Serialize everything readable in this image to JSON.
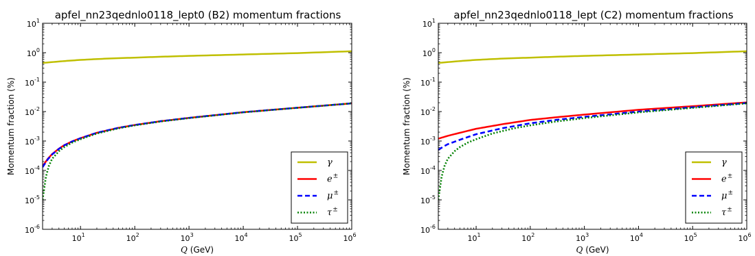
{
  "chart_data": [
    {
      "type": "line",
      "title": "apfel_nn23qednlo0118_lept0 (B2) momentum fractions",
      "xlabel_var": "Q",
      "xlabel_unit": "(GeV)",
      "ylabel": "Momentum fraction (%)",
      "xscale": "log",
      "yscale": "log",
      "xlim": [
        2,
        1000000
      ],
      "ylim": [
        1e-06,
        10
      ],
      "xticks": [
        {
          "base": "10",
          "exp": "1",
          "value": 10
        },
        {
          "base": "10",
          "exp": "2",
          "value": 100
        },
        {
          "base": "10",
          "exp": "3",
          "value": 1000
        },
        {
          "base": "10",
          "exp": "4",
          "value": 10000
        },
        {
          "base": "10",
          "exp": "5",
          "value": 100000
        },
        {
          "base": "10",
          "exp": "6",
          "value": 1000000
        }
      ],
      "yticks": [
        {
          "base": "10",
          "exp": "-6",
          "value": 1e-06
        },
        {
          "base": "10",
          "exp": "-5",
          "value": 1e-05
        },
        {
          "base": "10",
          "exp": "-4",
          "value": 0.0001
        },
        {
          "base": "10",
          "exp": "-3",
          "value": 0.001
        },
        {
          "base": "10",
          "exp": "-2",
          "value": 0.01
        },
        {
          "base": "10",
          "exp": "-1",
          "value": 0.1
        },
        {
          "base": "10",
          "exp": "0",
          "value": 1
        },
        {
          "base": "10",
          "exp": "1",
          "value": 10
        }
      ],
      "legend_position": "lower-right",
      "series": [
        {
          "name": "γ",
          "sup": "",
          "color": "#bfbf00",
          "style": "solid",
          "x": [
            2,
            5,
            10,
            30,
            100,
            300,
            1000,
            10000,
            100000,
            1000000
          ],
          "y": [
            0.45,
            0.52,
            0.57,
            0.63,
            0.68,
            0.73,
            0.78,
            0.87,
            0.97,
            1.12
          ]
        },
        {
          "name": "e",
          "sup": "±",
          "color": "#ff0000",
          "style": "solid",
          "x": [
            2,
            2.5,
            3,
            4,
            5,
            7,
            10,
            20,
            50,
            100,
            300,
            1000,
            10000,
            100000,
            1000000
          ],
          "y": [
            0.00014,
            0.00025,
            0.00036,
            0.00055,
            0.00072,
            0.00097,
            0.00125,
            0.0019,
            0.0028,
            0.0035,
            0.0047,
            0.0061,
            0.0095,
            0.0135,
            0.019
          ]
        },
        {
          "name": "μ",
          "sup": "±",
          "color": "#0000ff",
          "style": "dashed",
          "x": [
            2,
            2.5,
            3,
            4,
            5,
            7,
            10,
            20,
            50,
            100,
            300,
            1000,
            10000,
            100000,
            1000000
          ],
          "y": [
            0.00013,
            0.00024,
            0.00035,
            0.00054,
            0.00071,
            0.00096,
            0.00124,
            0.0019,
            0.0028,
            0.0035,
            0.0047,
            0.0061,
            0.0095,
            0.0135,
            0.019
          ]
        },
        {
          "name": "τ",
          "sup": "±",
          "color": "#008000",
          "style": "dotted",
          "x": [
            2,
            2.3,
            2.6,
            3,
            4,
            5,
            7,
            10,
            20,
            50,
            100,
            300,
            1000,
            10000,
            100000,
            1000000
          ],
          "y": [
            1e-05,
            6e-05,
            0.00014,
            0.00025,
            0.00045,
            0.00062,
            0.00088,
            0.00115,
            0.0018,
            0.0027,
            0.0034,
            0.0046,
            0.006,
            0.0094,
            0.0134,
            0.019
          ]
        }
      ]
    },
    {
      "type": "line",
      "title": "apfel_nn23qednlo0118_lept (C2) momentum fractions",
      "xlabel_var": "Q",
      "xlabel_unit": "(GeV)",
      "ylabel": "Momentum fraction (%)",
      "xscale": "log",
      "yscale": "log",
      "xlim": [
        2,
        1000000
      ],
      "ylim": [
        1e-06,
        10
      ],
      "xticks": [
        {
          "base": "10",
          "exp": "1",
          "value": 10
        },
        {
          "base": "10",
          "exp": "2",
          "value": 100
        },
        {
          "base": "10",
          "exp": "3",
          "value": 1000
        },
        {
          "base": "10",
          "exp": "4",
          "value": 10000
        },
        {
          "base": "10",
          "exp": "5",
          "value": 100000
        },
        {
          "base": "10",
          "exp": "6",
          "value": 1000000
        }
      ],
      "yticks": [
        {
          "base": "10",
          "exp": "-6",
          "value": 1e-06
        },
        {
          "base": "10",
          "exp": "-5",
          "value": 1e-05
        },
        {
          "base": "10",
          "exp": "-4",
          "value": 0.0001
        },
        {
          "base": "10",
          "exp": "-3",
          "value": 0.001
        },
        {
          "base": "10",
          "exp": "-2",
          "value": 0.01
        },
        {
          "base": "10",
          "exp": "-1",
          "value": 0.1
        },
        {
          "base": "10",
          "exp": "0",
          "value": 1
        },
        {
          "base": "10",
          "exp": "1",
          "value": 10
        }
      ],
      "legend_position": "lower-right",
      "series": [
        {
          "name": "γ",
          "sup": "",
          "color": "#bfbf00",
          "style": "solid",
          "x": [
            2,
            5,
            10,
            30,
            100,
            300,
            1000,
            10000,
            100000,
            1000000
          ],
          "y": [
            0.45,
            0.52,
            0.57,
            0.63,
            0.68,
            0.73,
            0.78,
            0.87,
            0.97,
            1.12
          ]
        },
        {
          "name": "e",
          "sup": "±",
          "color": "#ff0000",
          "style": "solid",
          "x": [
            2,
            3,
            5,
            10,
            30,
            100,
            300,
            1000,
            10000,
            100000,
            1000000
          ],
          "y": [
            0.0012,
            0.0015,
            0.0019,
            0.0026,
            0.0037,
            0.0052,
            0.0064,
            0.0079,
            0.0115,
            0.0152,
            0.0205
          ]
        },
        {
          "name": "μ",
          "sup": "±",
          "color": "#0000ff",
          "style": "dashed",
          "x": [
            2,
            2.5,
            3,
            5,
            10,
            30,
            100,
            300,
            1000,
            10000,
            100000,
            1000000
          ],
          "y": [
            0.0005,
            0.00065,
            0.00078,
            0.0011,
            0.0017,
            0.0027,
            0.004,
            0.0052,
            0.0066,
            0.01,
            0.014,
            0.0195
          ]
        },
        {
          "name": "τ",
          "sup": "±",
          "color": "#008000",
          "style": "dotted",
          "x": [
            2,
            2.3,
            2.6,
            3,
            4,
            5,
            7,
            10,
            20,
            50,
            100,
            300,
            1000,
            10000,
            100000,
            1000000
          ],
          "y": [
            1e-05,
            6e-05,
            0.00014,
            0.00025,
            0.00045,
            0.00062,
            0.00088,
            0.00115,
            0.0018,
            0.0027,
            0.0034,
            0.0046,
            0.006,
            0.0094,
            0.0134,
            0.019
          ]
        }
      ]
    }
  ]
}
